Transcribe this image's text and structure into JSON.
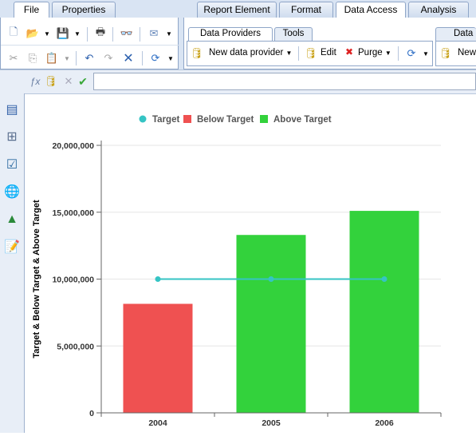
{
  "ribbon_left": {
    "tabs": [
      {
        "label": "File",
        "active": true
      },
      {
        "label": "Properties",
        "active": false
      }
    ]
  },
  "ribbon_right": {
    "tabs": [
      {
        "label": "Report Element",
        "active": false
      },
      {
        "label": "Format",
        "active": false
      },
      {
        "label": "Data Access",
        "active": true
      },
      {
        "label": "Analysis",
        "active": false
      }
    ],
    "subtabs": [
      {
        "label": "Data Providers",
        "active": true
      },
      {
        "label": "Tools",
        "active": false
      },
      {
        "label": "Data",
        "active": false
      }
    ],
    "buttons": {
      "new_data_provider": "New data provider",
      "edit": "Edit",
      "purge": "Purge",
      "new_partial": "New"
    }
  },
  "formula_bar": {
    "value": ""
  },
  "chart_data": {
    "type": "bar",
    "categories": [
      "2004",
      "2005",
      "2006"
    ],
    "series": [
      {
        "name": "Target",
        "kind": "line",
        "color": "#35c4c4",
        "values": [
          10000000,
          10000000,
          10000000
        ]
      },
      {
        "name": "Below Target",
        "kind": "bar",
        "color": "#ef5151",
        "values": [
          8150000,
          null,
          null
        ]
      },
      {
        "name": "Above Target",
        "kind": "bar",
        "color": "#33d23c",
        "values": [
          null,
          13300000,
          15100000
        ]
      }
    ],
    "ylabel": "Target & Below Target & Above Target",
    "xlabel": "",
    "ylim": [
      0,
      20000000
    ],
    "yticks": [
      {
        "value": 0,
        "label": "0"
      },
      {
        "value": 5000000,
        "label": "5,000,000"
      },
      {
        "value": 10000000,
        "label": "10,000,000"
      },
      {
        "value": 15000000,
        "label": "15,000,000"
      },
      {
        "value": 20000000,
        "label": "20,000,000"
      }
    ],
    "grid": true,
    "legend_position": "top"
  }
}
